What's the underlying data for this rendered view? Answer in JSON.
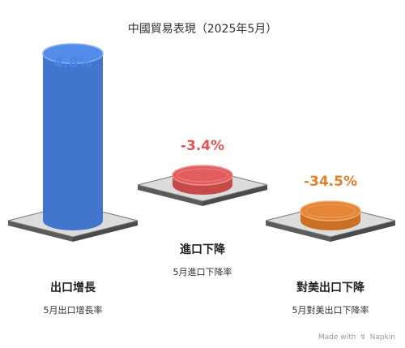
{
  "chart_data": {
    "type": "bar",
    "title": "中國貿易表現（2025年5月）",
    "categories": [
      "出口增長",
      "進口下降",
      "對美出口下降"
    ],
    "subtitles": [
      "5月出口增長率",
      "5月進口下降率",
      "5月對美出口下降率"
    ],
    "values": [
      4.8,
      -3.4,
      -34.5
    ],
    "value_labels": [
      "4.8%",
      "-3.4%",
      "-34.5%"
    ],
    "unit": "%",
    "colors": [
      "#4a86e8",
      "#e05555",
      "#e57f2a"
    ],
    "value_label_colors": [
      "#4a86e8",
      "#e05555",
      "#e57f2a"
    ],
    "legend": "none",
    "grid": false
  },
  "watermark": {
    "prefix": "Made with",
    "brand": "Napkin"
  }
}
